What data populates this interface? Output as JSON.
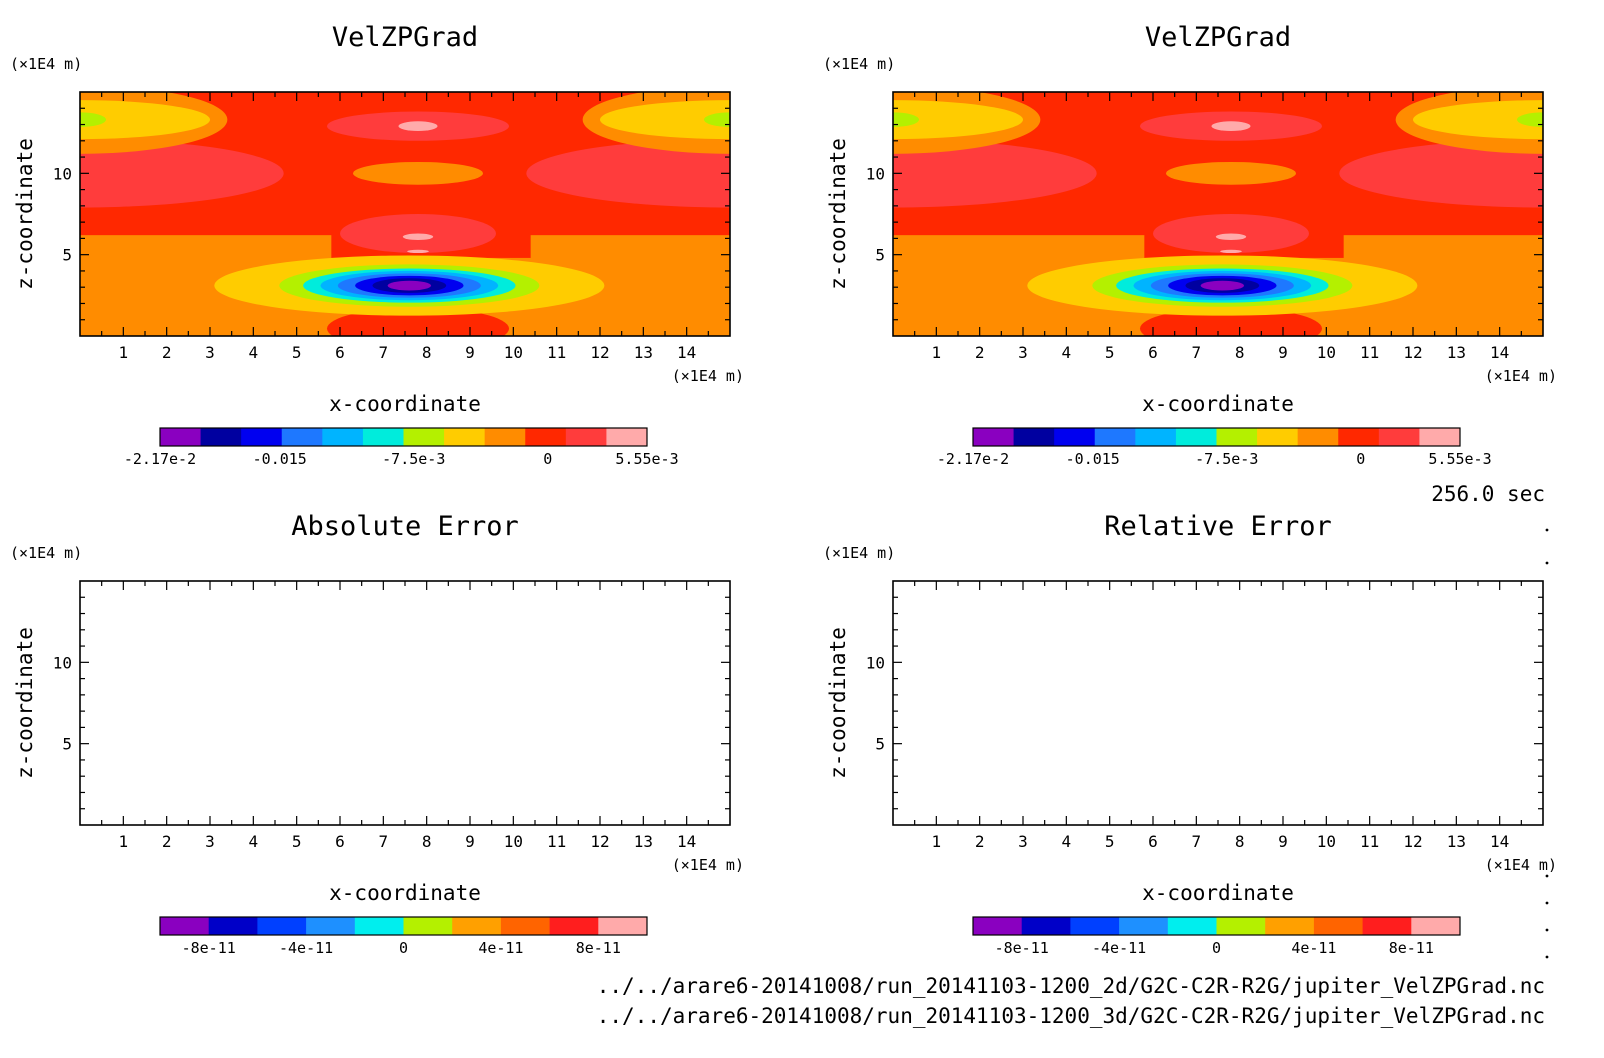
{
  "figure": {
    "time_label": "256.0 sec",
    "source_files": [
      "../../arare6-20141008/run_20141103-1200_2d/G2C-C2R-R2G/jupiter_VelZPGrad.nc",
      "../../arare6-20141008/run_20141103-1200_3d/G2C-C2R-R2G/jupiter_VelZPGrad.nc"
    ],
    "colors": {
      "scale_top": [
        "#8a00c0",
        "#0000a0",
        "#0000f0",
        "#1e78ff",
        "#00b4ff",
        "#00ecdc",
        "#b4f000",
        "#ffcc00",
        "#ff8c00",
        "#ff2800",
        "#ff3c3c",
        "#ffaaaa"
      ],
      "scale_bottom": [
        "#8a00c0",
        "#0000c8",
        "#0040ff",
        "#1e90ff",
        "#00eeee",
        "#b4f000",
        "#ffa000",
        "#ff6400",
        "#ff1e1e",
        "#ffaaaa"
      ]
    }
  },
  "chart_data": [
    {
      "type": "heatmap",
      "title": "VelZPGrad",
      "xlabel": "x-coordinate",
      "ylabel": "z-coordinate",
      "x_unit": "(×1E4 m)",
      "y_unit": "(×1E4 m)",
      "xlim": [
        0,
        15
      ],
      "ylim": [
        0,
        15
      ],
      "x_ticks": [
        "1",
        "2",
        "3",
        "4",
        "5",
        "6",
        "7",
        "8",
        "9",
        "10",
        "11",
        "12",
        "13",
        "14"
      ],
      "y_ticks": [
        "5",
        "10"
      ],
      "y_tick_values": [
        5,
        10
      ],
      "colorbar_labels": [
        "-2.17e-2",
        "-0.015",
        "-7.5e-3",
        "0",
        "5.55e-3"
      ],
      "colorbar_label_values": [
        -0.0217,
        -0.015,
        -0.0075,
        0,
        0.00555
      ],
      "colorbar_range": [
        -0.0217,
        0.00555
      ],
      "grid": false
    },
    {
      "type": "heatmap",
      "title": "VelZPGrad",
      "xlabel": "x-coordinate",
      "ylabel": "z-coordinate",
      "x_unit": "(×1E4 m)",
      "y_unit": "(×1E4 m)",
      "xlim": [
        0,
        15
      ],
      "ylim": [
        0,
        15
      ],
      "x_ticks": [
        "1",
        "2",
        "3",
        "4",
        "5",
        "6",
        "7",
        "8",
        "9",
        "10",
        "11",
        "12",
        "13",
        "14"
      ],
      "y_ticks": [
        "5",
        "10"
      ],
      "y_tick_values": [
        5,
        10
      ],
      "colorbar_labels": [
        "-2.17e-2",
        "-0.015",
        "-7.5e-3",
        "0",
        "5.55e-3"
      ],
      "colorbar_label_values": [
        -0.0217,
        -0.015,
        -0.0075,
        0,
        0.00555
      ],
      "colorbar_range": [
        -0.0217,
        0.00555
      ],
      "grid": false
    },
    {
      "type": "heatmap",
      "title": "Absolute Error",
      "xlabel": "x-coordinate",
      "ylabel": "z-coordinate",
      "x_unit": "(×1E4 m)",
      "y_unit": "(×1E4 m)",
      "xlim": [
        0,
        15
      ],
      "ylim": [
        0,
        15
      ],
      "x_ticks": [
        "1",
        "2",
        "3",
        "4",
        "5",
        "6",
        "7",
        "8",
        "9",
        "10",
        "11",
        "12",
        "13",
        "14"
      ],
      "y_ticks": [
        "5",
        "10"
      ],
      "y_tick_values": [
        5,
        10
      ],
      "colorbar_labels": [
        "-8e-11",
        "-4e-11",
        "0",
        "4e-11",
        "8e-11"
      ],
      "colorbar_label_values": [
        -8e-11,
        -4e-11,
        0,
        4e-11,
        8e-11
      ],
      "colorbar_range": [
        -1e-10,
        1e-10
      ],
      "field": "empty",
      "grid": false
    },
    {
      "type": "heatmap",
      "title": "Relative Error",
      "xlabel": "x-coordinate",
      "ylabel": "z-coordinate",
      "x_unit": "(×1E4 m)",
      "y_unit": "(×1E4 m)",
      "xlim": [
        0,
        15
      ],
      "ylim": [
        0,
        15
      ],
      "x_ticks": [
        "1",
        "2",
        "3",
        "4",
        "5",
        "6",
        "7",
        "8",
        "9",
        "10",
        "11",
        "12",
        "13",
        "14"
      ],
      "y_ticks": [
        "5",
        "10"
      ],
      "y_tick_values": [
        5,
        10
      ],
      "colorbar_labels": [
        "-8e-11",
        "-4e-11",
        "0",
        "4e-11",
        "8e-11"
      ],
      "colorbar_label_values": [
        -8e-11,
        -4e-11,
        0,
        4e-11,
        8e-11
      ],
      "colorbar_range": [
        -1e-10,
        1e-10
      ],
      "field": "empty",
      "grid": false
    }
  ]
}
